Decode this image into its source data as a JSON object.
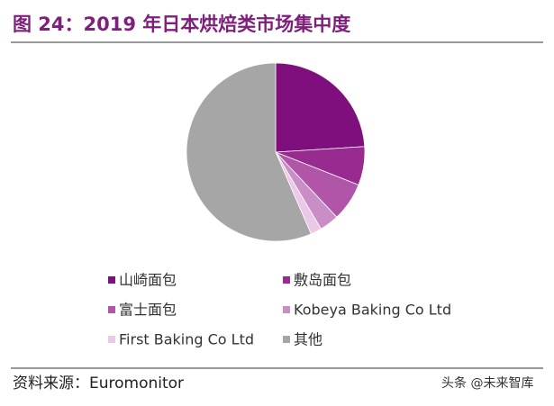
{
  "chart_data": {
    "type": "pie",
    "title": "图 24：2019 年日本烘焙类市场集中度",
    "categories": [
      "山崎面包",
      "敷岛面包",
      "富士面包",
      "Kobeya Baking Co Ltd",
      "First Baking Co Ltd",
      "其他"
    ],
    "values": [
      24,
      7,
      7,
      3.5,
      2,
      56.5
    ],
    "colors": [
      "#7e0f7c",
      "#992a8f",
      "#b055a8",
      "#c98ec5",
      "#ebc8e8",
      "#a6a6a6"
    ]
  },
  "source": "资料来源：Euromonitor",
  "watermark": "头条 @未来智库"
}
